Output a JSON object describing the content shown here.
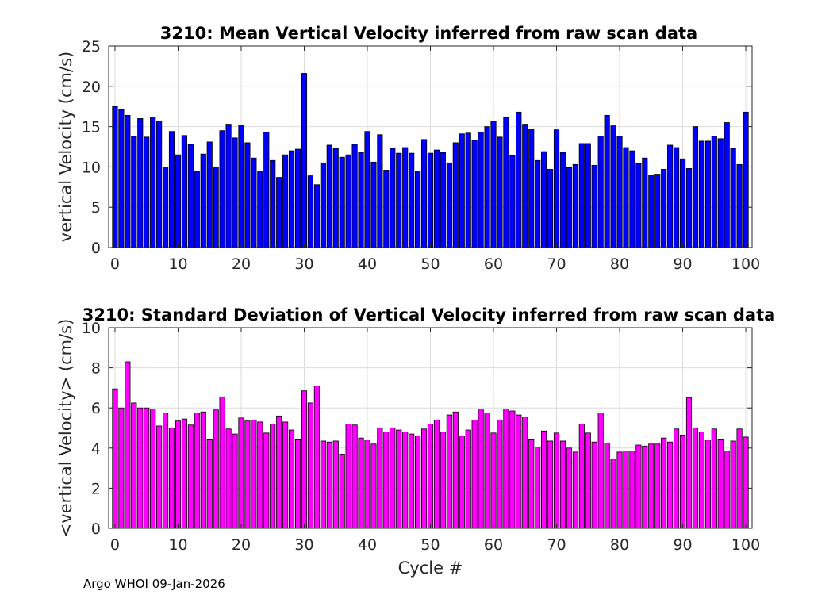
{
  "chart_data": [
    {
      "type": "bar",
      "title": "3210: Mean Vertical Velocity inferred from raw scan data",
      "xlabel": "",
      "ylabel": "vertical Velocity (cm/s)",
      "xlim": [
        -1,
        101
      ],
      "ylim": [
        0,
        25
      ],
      "xticks": [
        0,
        10,
        20,
        30,
        40,
        50,
        60,
        70,
        80,
        90,
        100
      ],
      "yticks": [
        0,
        5,
        10,
        15,
        20,
        25
      ],
      "grid": true,
      "color": "#0000ff",
      "x_start": 0,
      "values": [
        17.5,
        17.1,
        16.4,
        13.8,
        16.0,
        13.7,
        16.2,
        15.7,
        10.0,
        14.4,
        11.5,
        13.9,
        12.8,
        9.4,
        11.6,
        13.1,
        10.0,
        14.5,
        15.3,
        13.6,
        15.2,
        13.0,
        11.1,
        9.4,
        14.3,
        10.8,
        8.7,
        11.5,
        12.0,
        12.2,
        21.6,
        8.9,
        7.8,
        10.5,
        12.7,
        12.3,
        11.2,
        11.5,
        12.8,
        11.8,
        14.4,
        10.6,
        14.0,
        9.6,
        12.3,
        11.7,
        12.4,
        11.7,
        9.5,
        13.4,
        11.7,
        12.1,
        11.8,
        10.5,
        13.0,
        14.1,
        14.2,
        13.3,
        14.3,
        15.0,
        15.7,
        13.7,
        16.1,
        11.4,
        16.8,
        15.3,
        14.7,
        10.8,
        11.9,
        9.7,
        14.6,
        11.8,
        9.9,
        10.3,
        12.9,
        12.9,
        10.2,
        13.8,
        16.4,
        15.1,
        13.8,
        12.4,
        12.0,
        10.4,
        11.1,
        9.0,
        9.1,
        9.7,
        12.7,
        12.4,
        11.0,
        9.8,
        15.0,
        13.2,
        13.2,
        13.8,
        13.5,
        15.5,
        12.3,
        10.3,
        16.8
      ]
    },
    {
      "type": "bar",
      "title": "3210: Standard Deviation of Vertical Velocity inferred from raw scan data",
      "xlabel": "Cycle #",
      "ylabel": "<vertical Velocity> (cm/s)",
      "xlim": [
        -1,
        101
      ],
      "ylim": [
        0,
        10
      ],
      "xticks": [
        0,
        10,
        20,
        30,
        40,
        50,
        60,
        70,
        80,
        90,
        100
      ],
      "yticks": [
        0,
        2,
        4,
        6,
        8,
        10
      ],
      "grid": true,
      "color": "#ff00ff",
      "x_start": 0,
      "values": [
        6.95,
        6.0,
        8.3,
        6.25,
        6.0,
        6.0,
        5.95,
        5.1,
        5.75,
        5.0,
        5.35,
        5.45,
        5.15,
        5.75,
        5.8,
        4.45,
        5.9,
        6.55,
        4.95,
        4.7,
        5.5,
        5.35,
        5.4,
        5.3,
        4.75,
        5.2,
        5.6,
        5.3,
        4.9,
        4.45,
        6.85,
        6.25,
        7.1,
        4.35,
        4.3,
        4.35,
        3.7,
        5.2,
        5.15,
        4.5,
        4.4,
        4.2,
        5.0,
        4.8,
        5.0,
        4.9,
        4.8,
        4.7,
        4.6,
        4.95,
        5.2,
        5.4,
        4.8,
        5.65,
        5.8,
        4.6,
        4.9,
        5.4,
        5.95,
        5.75,
        4.75,
        5.4,
        5.95,
        5.85,
        5.65,
        5.55,
        4.45,
        4.05,
        4.85,
        4.35,
        4.75,
        4.35,
        4.0,
        3.8,
        5.2,
        4.75,
        4.3,
        5.75,
        4.25,
        3.45,
        3.8,
        3.85,
        3.85,
        4.15,
        4.1,
        4.2,
        4.2,
        4.5,
        4.3,
        4.95,
        4.65,
        6.5,
        5.0,
        4.8,
        4.4,
        4.95,
        4.45,
        3.85,
        4.35,
        4.95,
        4.55
      ]
    }
  ],
  "footer": "Argo WHOI 09-Jan-2026"
}
